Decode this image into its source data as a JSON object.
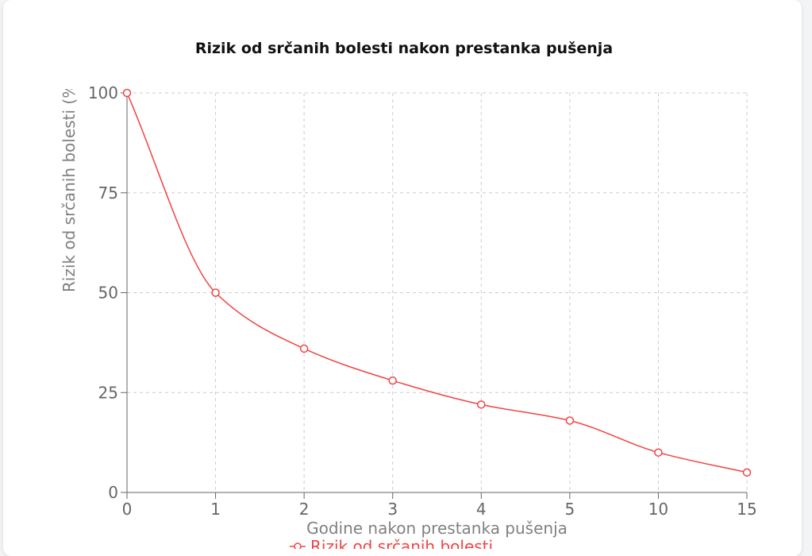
{
  "chart_data": {
    "type": "line",
    "title": "Rizik od srčanih bolesti nakon prestanka pušenja",
    "xlabel": "Godine nakon prestanka pušenja",
    "ylabel": "Rizik od srčanih bolesti (%)",
    "categories": [
      "0",
      "1",
      "2",
      "3",
      "4",
      "5",
      "10",
      "15"
    ],
    "yticks": [
      "0",
      "25",
      "50",
      "75",
      "100"
    ],
    "ylim": [
      0,
      100
    ],
    "grid": true,
    "legend_position": "bottom",
    "series": [
      {
        "name": "Rizik od srčanih bolesti",
        "values": [
          100,
          50,
          36,
          28,
          22,
          18,
          10,
          5
        ],
        "color": "#ef4444"
      }
    ]
  }
}
